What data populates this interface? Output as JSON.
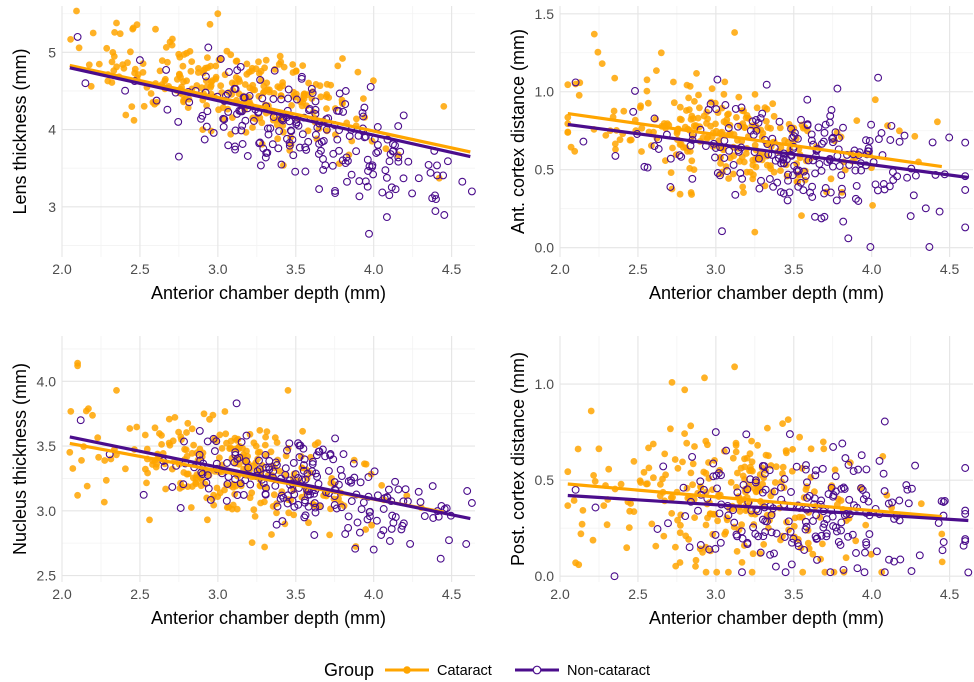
{
  "legend": {
    "title": "Group",
    "items": [
      {
        "label": "Cataract",
        "color": "#FFA500",
        "marker": "filled-circle"
      },
      {
        "label": "Non-cataract",
        "color": "#4B0D8C",
        "marker": "open-circle"
      }
    ]
  },
  "chart_data": [
    {
      "type": "scatter",
      "title": "",
      "xlabel": "Anterior chamber depth (mm)",
      "ylabel": "Lens thickness (mm)",
      "xlim": [
        2.0,
        4.65
      ],
      "ylim": [
        2.35,
        5.6
      ],
      "x_ticks": [
        "2.0",
        "2.5",
        "3.0",
        "3.5",
        "4.0",
        "4.5"
      ],
      "y_ticks": [
        "3",
        "4",
        "5"
      ],
      "x_tick_values": [
        2.0,
        2.5,
        3.0,
        3.5,
        4.0,
        4.5
      ],
      "y_tick_values": [
        3,
        4,
        5
      ],
      "grid": true,
      "series": [
        {
          "name": "Cataract",
          "fit_line": [
            [
              2.05,
              4.83
            ],
            [
              4.62,
              3.71
            ]
          ],
          "cloud": {
            "x_mean": 3.1,
            "x_sd": 0.45,
            "y_intercept": 6.0,
            "slope": -0.47,
            "resid_sd": 0.28,
            "n": 260
          },
          "points": [
            [
              2.2,
              5.25
            ],
            [
              2.35,
              5.38
            ],
            [
              2.6,
              5.3
            ],
            [
              3.0,
              5.5
            ],
            [
              3.4,
              4.95
            ],
            [
              3.8,
              4.92
            ],
            [
              4.45,
              4.3
            ],
            [
              4.42,
              3.37
            ]
          ]
        },
        {
          "name": "Non-cataract",
          "fit_line": [
            [
              2.05,
              4.8
            ],
            [
              4.62,
              3.65
            ]
          ],
          "cloud": {
            "x_mean": 3.55,
            "x_sd": 0.45,
            "y_intercept": 5.9,
            "slope": -0.55,
            "resid_sd": 0.3,
            "n": 210
          },
          "points": [
            [
              2.1,
              5.2
            ],
            [
              2.15,
              4.6
            ],
            [
              2.5,
              4.9
            ],
            [
              2.75,
              3.65
            ],
            [
              3.97,
              2.65
            ],
            [
              4.63,
              3.2
            ],
            [
              4.4,
              3.1
            ],
            [
              4.1,
              3.15
            ]
          ]
        }
      ]
    },
    {
      "type": "scatter",
      "title": "",
      "xlabel": "Anterior chamber depth (mm)",
      "ylabel": "Ant. cortex distance (mm)",
      "xlim": [
        2.0,
        4.65
      ],
      "ylim": [
        -0.06,
        1.55
      ],
      "x_ticks": [
        "2.0",
        "2.5",
        "3.0",
        "3.5",
        "4.0",
        "4.5"
      ],
      "y_ticks": [
        "0.0",
        "0.5",
        "1.0",
        "1.5"
      ],
      "x_tick_values": [
        2.0,
        2.5,
        3.0,
        3.5,
        4.0,
        4.5
      ],
      "y_tick_values": [
        0.0,
        0.5,
        1.0,
        1.5
      ],
      "grid": true,
      "series": [
        {
          "name": "Cataract",
          "fit_line": [
            [
              2.05,
              0.86
            ],
            [
              4.45,
              0.52
            ]
          ],
          "cloud": {
            "x_mean": 3.1,
            "x_sd": 0.45,
            "y_intercept": 1.15,
            "slope": -0.14,
            "resid_sd": 0.17,
            "n": 260
          },
          "points": [
            [
              2.22,
              1.37
            ],
            [
              3.12,
              1.38
            ],
            [
              2.65,
              1.25
            ],
            [
              3.25,
              0.1
            ],
            [
              4.3,
              0.55
            ],
            [
              2.1,
              1.05
            ]
          ]
        },
        {
          "name": "Non-cataract",
          "fit_line": [
            [
              2.05,
              0.79
            ],
            [
              4.62,
              0.45
            ]
          ],
          "cloud": {
            "x_mean": 3.55,
            "x_sd": 0.45,
            "y_intercept": 1.05,
            "slope": -0.13,
            "resid_sd": 0.18,
            "n": 210
          },
          "points": [
            [
              2.1,
              1.06
            ],
            [
              3.78,
              1.02
            ],
            [
              3.85,
              0.06
            ],
            [
              4.6,
              0.13
            ],
            [
              2.15,
              0.68
            ]
          ]
        }
      ]
    },
    {
      "type": "scatter",
      "title": "",
      "xlabel": "Anterior chamber depth (mm)",
      "ylabel": "Nucleus thickness (mm)",
      "xlim": [
        2.0,
        4.65
      ],
      "ylim": [
        2.45,
        4.35
      ],
      "x_ticks": [
        "2.0",
        "2.5",
        "3.0",
        "3.5",
        "4.0",
        "4.5"
      ],
      "y_ticks": [
        "2.5",
        "3.0",
        "3.5",
        "4.0"
      ],
      "x_tick_values": [
        2.0,
        2.5,
        3.0,
        3.5,
        4.0,
        4.5
      ],
      "y_tick_values": [
        2.5,
        3.0,
        3.5,
        4.0
      ],
      "grid": true,
      "series": [
        {
          "name": "Cataract",
          "fit_line": [
            [
              2.05,
              3.52
            ],
            [
              4.45,
              2.99
            ]
          ],
          "cloud": {
            "x_mean": 3.1,
            "x_sd": 0.45,
            "y_intercept": 3.97,
            "slope": -0.22,
            "resid_sd": 0.18,
            "n": 260
          },
          "points": [
            [
              2.1,
              4.14
            ],
            [
              2.1,
              4.12
            ],
            [
              2.35,
              3.93
            ],
            [
              3.45,
              3.93
            ],
            [
              2.1,
              3.12
            ],
            [
              3.3,
              2.72
            ]
          ]
        },
        {
          "name": "Non-cataract",
          "fit_line": [
            [
              2.05,
              3.57
            ],
            [
              4.62,
              2.94
            ]
          ],
          "cloud": {
            "x_mean": 3.55,
            "x_sd": 0.45,
            "y_intercept": 4.07,
            "slope": -0.245,
            "resid_sd": 0.17,
            "n": 210
          },
          "points": [
            [
              2.12,
              3.7
            ],
            [
              3.12,
              3.83
            ],
            [
              4.43,
              2.63
            ],
            [
              4.63,
              3.06
            ],
            [
              4.0,
              2.7
            ]
          ]
        }
      ]
    },
    {
      "type": "scatter",
      "title": "",
      "xlabel": "Anterior chamber depth (mm)",
      "ylabel": "Post. cortex distance (mm)",
      "xlim": [
        2.0,
        4.65
      ],
      "ylim": [
        -0.03,
        1.25
      ],
      "x_ticks": [
        "2.0",
        "2.5",
        "3.0",
        "3.5",
        "4.0",
        "4.5"
      ],
      "y_ticks": [
        "0.0",
        "0.5",
        "1.0"
      ],
      "x_tick_values": [
        2.0,
        2.5,
        3.0,
        3.5,
        4.0,
        4.5
      ],
      "y_tick_values": [
        0.0,
        0.5,
        1.0
      ],
      "grid": true,
      "series": [
        {
          "name": "Cataract",
          "fit_line": [
            [
              2.05,
              0.48
            ],
            [
              4.45,
              0.31
            ]
          ],
          "cloud": {
            "x_mean": 3.1,
            "x_sd": 0.45,
            "y_intercept": 0.63,
            "slope": -0.07,
            "resid_sd": 0.19,
            "n": 260
          },
          "points": [
            [
              3.12,
              1.09
            ],
            [
              2.8,
              0.97
            ],
            [
              2.1,
              0.07
            ],
            [
              2.12,
              0.06
            ],
            [
              4.45,
              0.22
            ],
            [
              2.2,
              0.86
            ]
          ]
        },
        {
          "name": "Non-cataract",
          "fit_line": [
            [
              2.05,
              0.42
            ],
            [
              4.62,
              0.29
            ]
          ],
          "cloud": {
            "x_mean": 3.55,
            "x_sd": 0.45,
            "y_intercept": 0.52,
            "slope": -0.05,
            "resid_sd": 0.17,
            "n": 210
          },
          "points": [
            [
              2.1,
              0.45
            ],
            [
              2.35,
              0.0
            ],
            [
              4.62,
              0.02
            ],
            [
              4.05,
              0.6
            ],
            [
              3.0,
              0.75
            ]
          ]
        }
      ]
    }
  ]
}
